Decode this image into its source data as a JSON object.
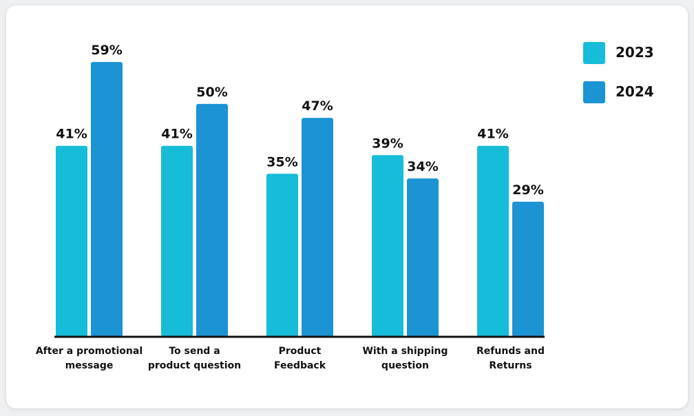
{
  "chart_data": {
    "type": "bar",
    "categories": [
      [
        "After a promotional",
        "message"
      ],
      [
        "To send a",
        "product question"
      ],
      [
        "Product",
        "Feedback"
      ],
      [
        "With a shipping",
        "question"
      ],
      [
        "Refunds and",
        "Returns"
      ]
    ],
    "series": [
      {
        "name": "2023",
        "color": "#17bcd8",
        "values": [
          41,
          41,
          35,
          39,
          41
        ],
        "labels": [
          "41%",
          "41%",
          "35%",
          "39%",
          "41%"
        ]
      },
      {
        "name": "2024",
        "color": "#1c93d3",
        "values": [
          59,
          50,
          47,
          34,
          29
        ],
        "labels": [
          "59%",
          "50%",
          "47%",
          "34%",
          "29%"
        ]
      }
    ],
    "ylim": [
      0,
      59
    ],
    "grid": false,
    "legend_position": "top-right",
    "title": "",
    "xlabel": "",
    "ylabel": ""
  }
}
